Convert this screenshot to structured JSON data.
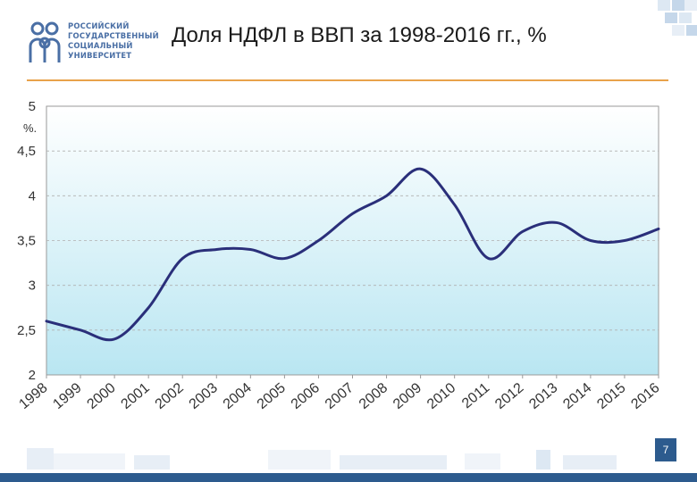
{
  "logo": {
    "lines": [
      "РОССИЙСКИЙ",
      "ГОСУДАРСТВЕННЫЙ",
      "СОЦИАЛЬНЫЙ",
      "УНИВЕРСИТЕТ"
    ]
  },
  "slide": {
    "title": "Доля НДФЛ в ВВП за 1998-2016 гг., %",
    "page_number": "7"
  },
  "colors": {
    "line": "#2a2f7a",
    "accent_rule": "#e8a24a",
    "brand_blue": "#2d5b8e",
    "plot_fill_top": "#ffffff",
    "plot_fill_bottom": "#b9e6f2"
  },
  "chart_data": {
    "type": "line",
    "title": "",
    "xlabel": "",
    "ylabel": "%.",
    "categories": [
      "1998",
      "1999",
      "2000",
      "2001",
      "2002",
      "2003",
      "2004",
      "2005",
      "2006",
      "2007",
      "2008",
      "2009",
      "2010",
      "2011",
      "2012",
      "2013",
      "2014",
      "2015",
      "2016"
    ],
    "series": [
      {
        "values": [
          2.6,
          2.5,
          2.4,
          2.75,
          3.3,
          3.4,
          3.4,
          3.3,
          3.5,
          3.8,
          4.0,
          4.3,
          3.9,
          3.3,
          3.6,
          3.7,
          3.5,
          3.5,
          3.63
        ]
      }
    ],
    "ylim": [
      2,
      5
    ],
    "yticks": [
      "2",
      "2,5",
      "3",
      "3,5",
      "4",
      "4,5",
      "5"
    ],
    "grid": "horizontal dashed",
    "legend": "none"
  }
}
